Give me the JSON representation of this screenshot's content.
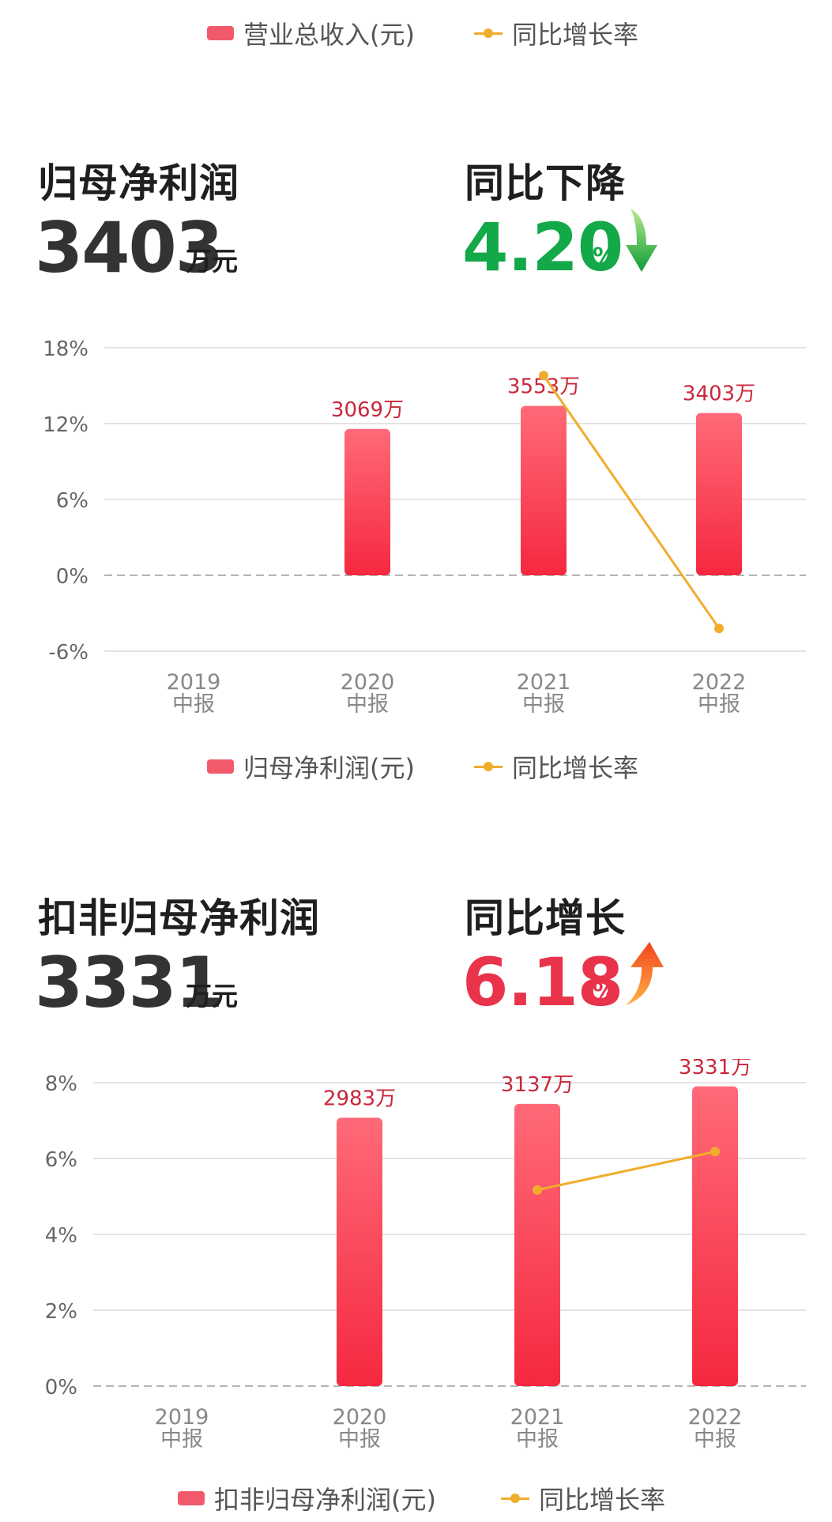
{
  "top_legend": {
    "bar_label": "营业总收入(元)",
    "line_label": "同比增长率"
  },
  "sections": [
    {
      "title": "归母净利润",
      "value": "3403",
      "unit": "万元",
      "change_title": "同比下降",
      "change_value": "4.20",
      "change_unit": "%",
      "direction": "down",
      "change_color": "#13a848",
      "legend": {
        "bar_label": "归母净利润(元)",
        "line_label": "同比增长率"
      }
    },
    {
      "title": "扣非归母净利润",
      "value": "3331",
      "unit": "万元",
      "change_title": "同比增长",
      "change_value": "6.18",
      "change_unit": "%",
      "direction": "up",
      "change_color": "#e8334a",
      "legend": {
        "bar_label": "扣非归母净利润(元)",
        "line_label": "同比增长率"
      }
    }
  ],
  "chart_data": [
    {
      "type": "bar",
      "categories": [
        "2019\n中报",
        "2020\n中报",
        "2021\n中报",
        "2022\n中报"
      ],
      "series": [
        {
          "name": "归母净利润(元)",
          "type": "bar",
          "values": [
            null,
            3069,
            3553,
            3403
          ],
          "labels": [
            "",
            "3069万",
            "3553万",
            "3403万"
          ]
        },
        {
          "name": "同比增长率",
          "type": "line",
          "values": [
            null,
            null,
            15.8,
            -4.2
          ]
        }
      ],
      "y_ticks": [
        "18%",
        "12%",
        "6%",
        "0%",
        "-6%"
      ],
      "ylim": [
        -6,
        18
      ],
      "bar_max_pct": 13.4,
      "grid": true,
      "legend": "bottom-center",
      "colors": {
        "bar_top": "#ff6a78",
        "bar_bottom": "#f5283f",
        "line": "#f0ad2c"
      }
    },
    {
      "type": "bar",
      "categories": [
        "2019\n中报",
        "2020\n中报",
        "2021\n中报",
        "2022\n中报"
      ],
      "series": [
        {
          "name": "扣非归母净利润(元)",
          "type": "bar",
          "values": [
            null,
            2983,
            3137,
            3331
          ],
          "labels": [
            "",
            "2983万",
            "3137万",
            "3331万"
          ]
        },
        {
          "name": "同比增长率",
          "type": "line",
          "values": [
            null,
            null,
            5.17,
            6.18
          ]
        }
      ],
      "y_ticks": [
        "8%",
        "6%",
        "4%",
        "2%",
        "0%"
      ],
      "ylim": [
        0,
        8
      ],
      "bar_max_pct": 7.9,
      "grid": true,
      "legend": "bottom-center",
      "colors": {
        "bar_top": "#ff6a78",
        "bar_bottom": "#f5283f",
        "line": "#f0ad2c"
      }
    }
  ]
}
